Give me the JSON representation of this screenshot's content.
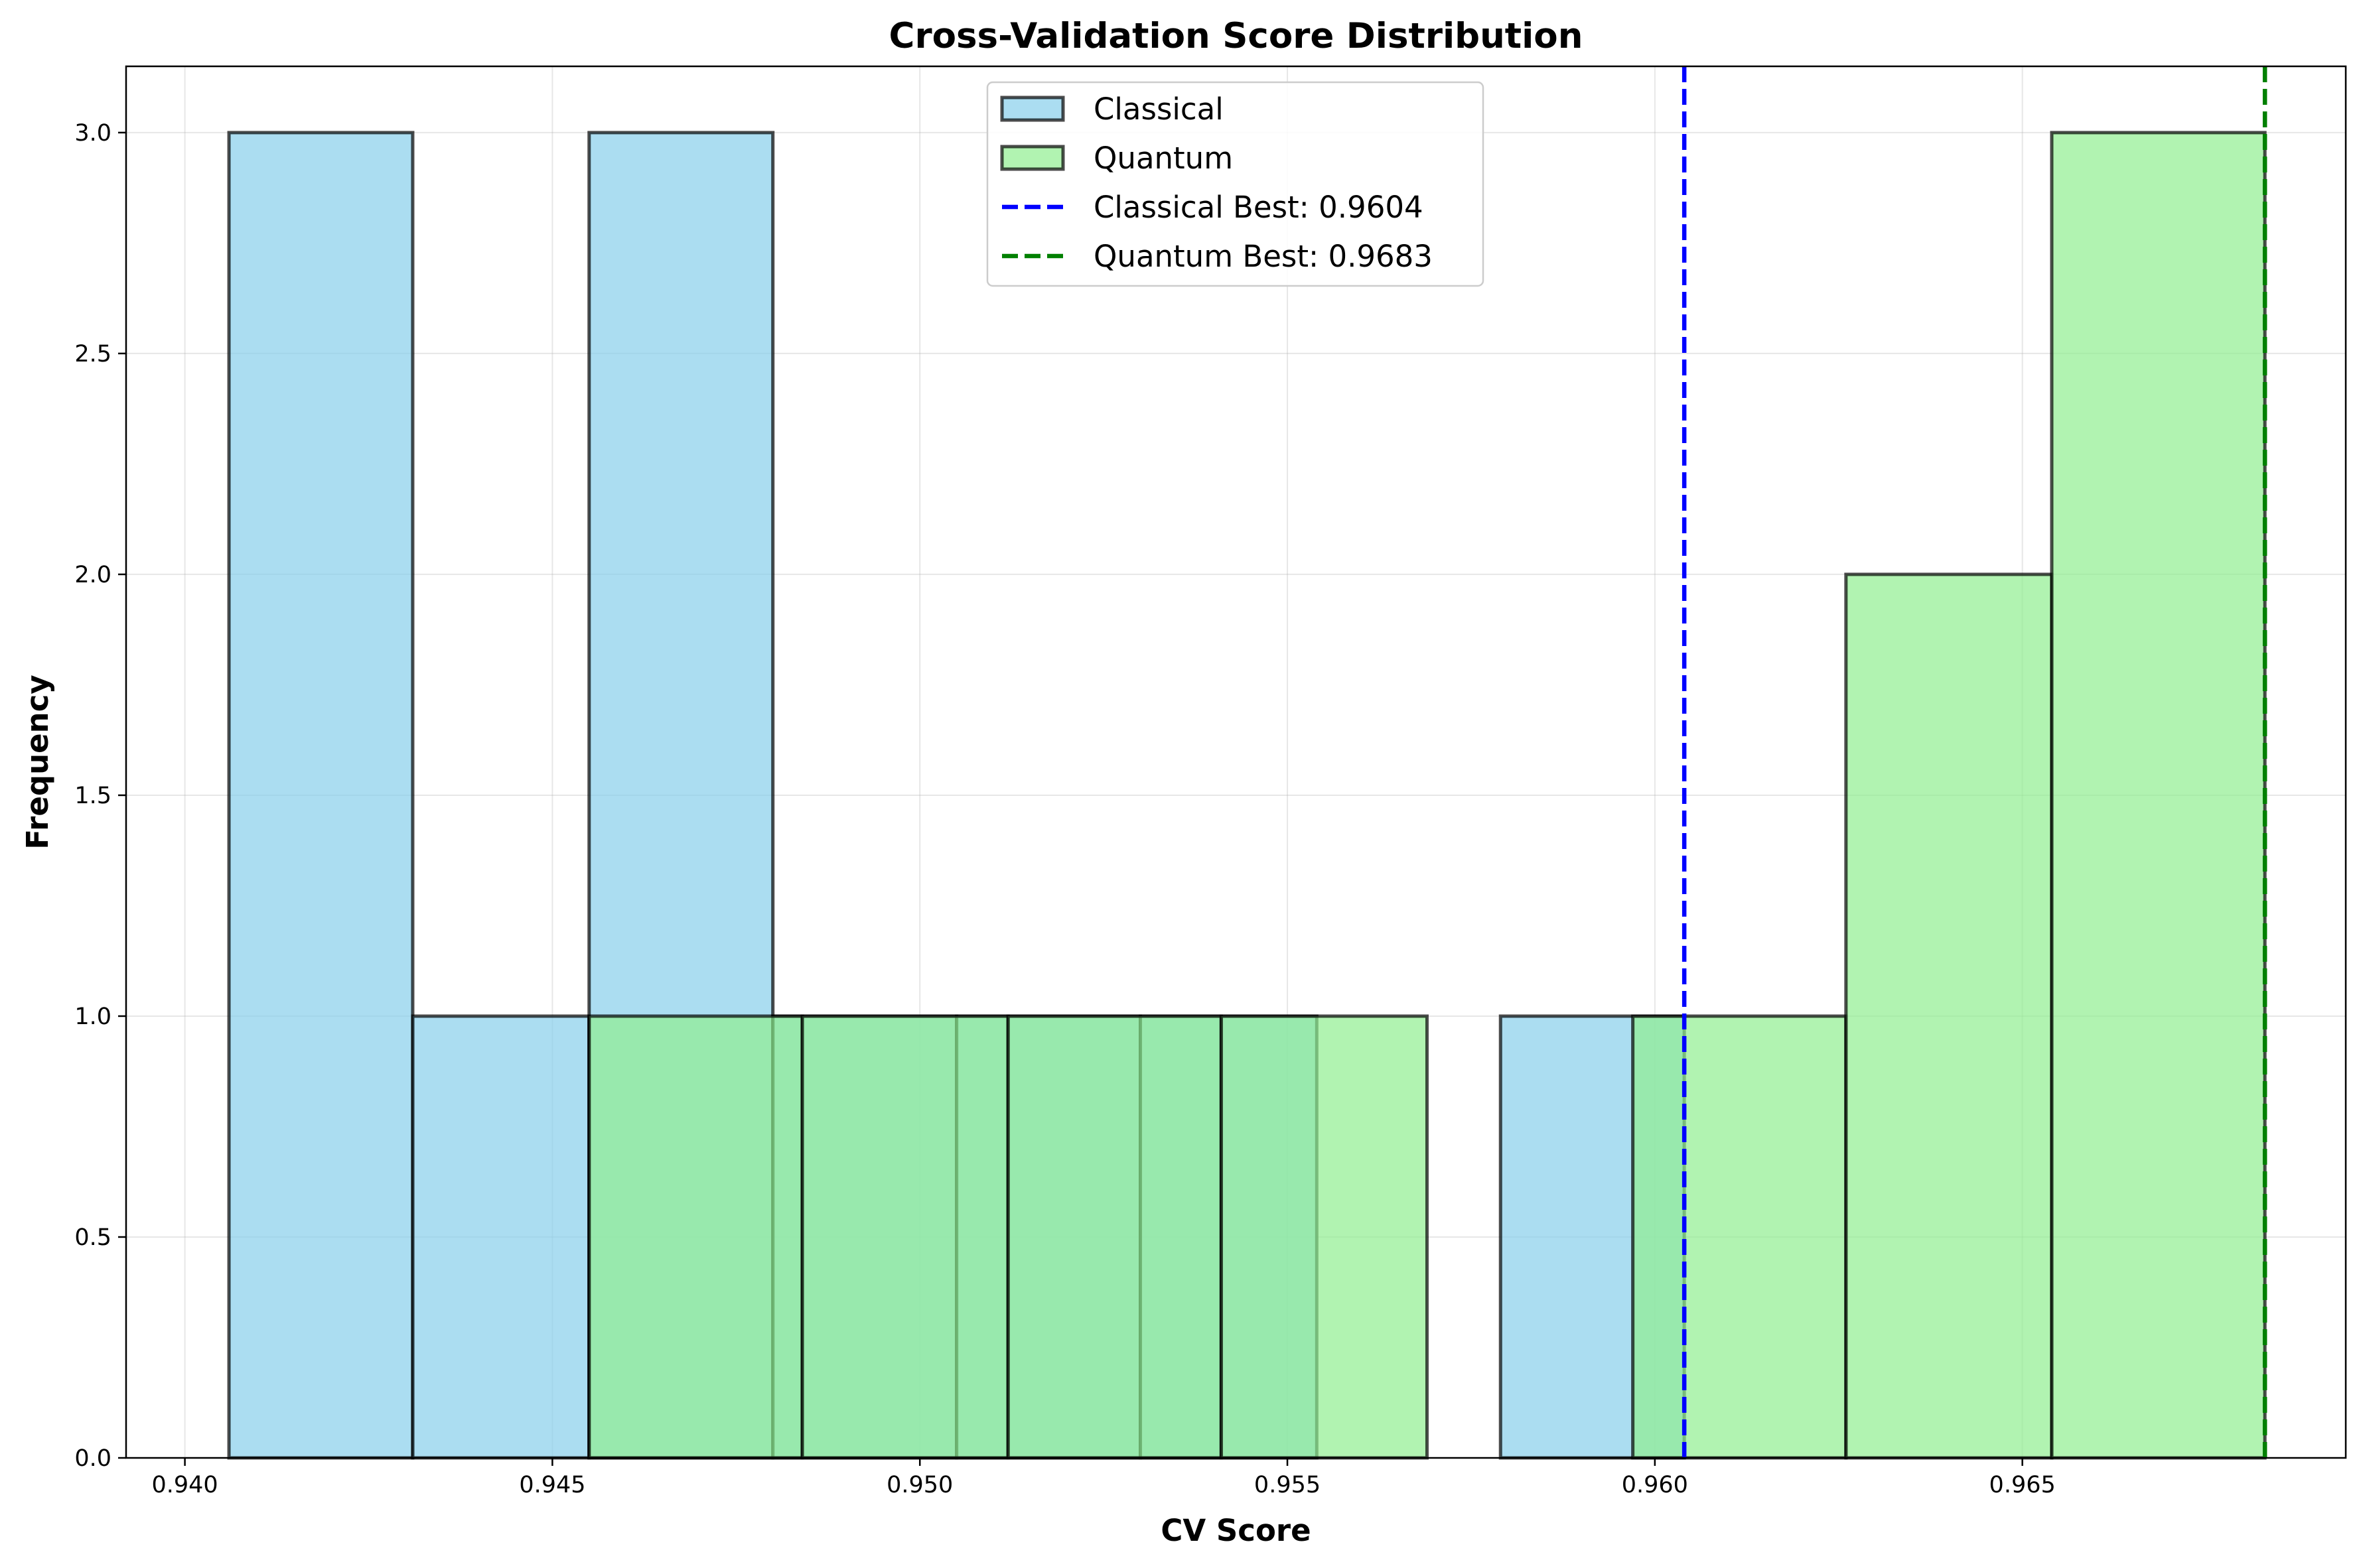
{
  "chart_data": {
    "type": "bar",
    "subtype": "histogram",
    "title": "Cross-Validation Score Distribution",
    "xlabel": "CV Score",
    "ylabel": "Frequency",
    "xlim": [
      0.9392,
      0.9694
    ],
    "ylim": [
      0.0,
      3.15
    ],
    "xticks": [
      "0.940",
      "0.945",
      "0.950",
      "0.955",
      "0.960",
      "0.965"
    ],
    "xtick_values": [
      0.94,
      0.945,
      0.95,
      0.955,
      0.96,
      0.965
    ],
    "yticks": [
      "0.0",
      "0.5",
      "1.0",
      "1.5",
      "2.0",
      "2.5",
      "3.0"
    ],
    "ytick_values": [
      0.0,
      0.5,
      1.0,
      1.5,
      2.0,
      2.5,
      3.0
    ],
    "grid": true,
    "legend_position": "top-center",
    "series": [
      {
        "name": "Classical",
        "color": "#87ceeb",
        "bin_edges": [
          0.9406,
          0.9431,
          0.9455,
          0.948,
          0.9505,
          0.953,
          0.9554,
          0.9579,
          0.9604
        ],
        "values": [
          3,
          1,
          3,
          1,
          1,
          1,
          0,
          1
        ]
      },
      {
        "name": "Quantum",
        "color": "#90ee90",
        "bin_edges": [
          0.9455,
          0.9484,
          0.9512,
          0.9541,
          0.9569,
          0.9597,
          0.9626,
          0.9654,
          0.9683
        ],
        "values": [
          1,
          1,
          1,
          1,
          0,
          1,
          2,
          3
        ]
      }
    ],
    "reference_lines": [
      {
        "name": "Classical Best: 0.9604",
        "x": 0.9604,
        "color": "#0000ff",
        "style": "dashed"
      },
      {
        "name": "Quantum Best: 0.9683",
        "x": 0.9683,
        "color": "#008000",
        "style": "dashed"
      }
    ]
  }
}
